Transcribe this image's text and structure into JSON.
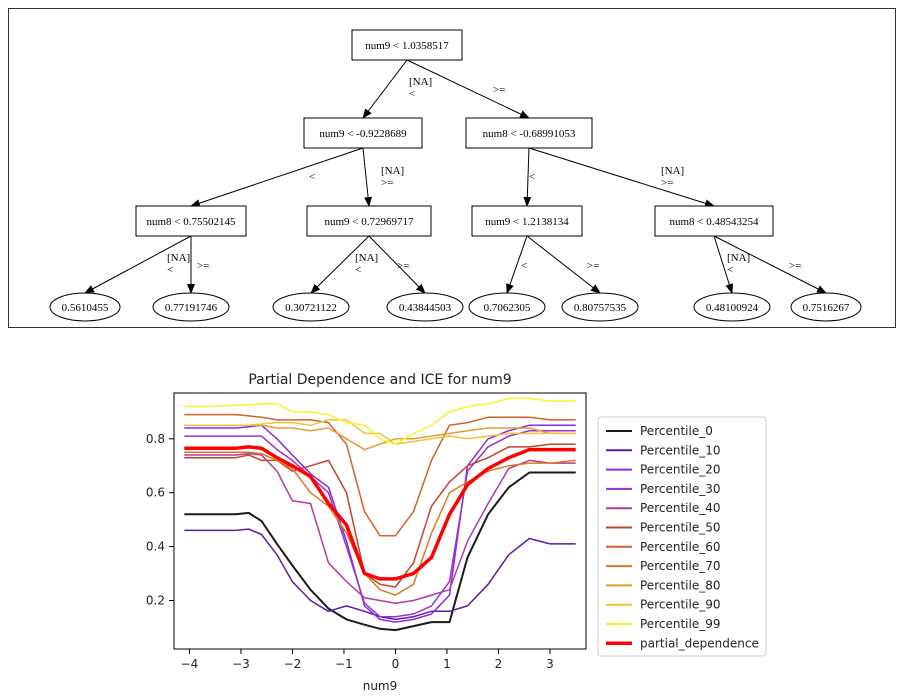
{
  "tree": {
    "nodes": [
      {
        "id": "n0",
        "label": "num9 < 1.0358517",
        "shape": "box"
      },
      {
        "id": "n1",
        "label": "num9 < -0.9228689",
        "shape": "box"
      },
      {
        "id": "n2",
        "label": "num8 < -0.68991053",
        "shape": "box"
      },
      {
        "id": "n3",
        "label": "num8 < 0.75502145",
        "shape": "box"
      },
      {
        "id": "n4",
        "label": "num9 < 0.72969717",
        "shape": "box"
      },
      {
        "id": "n5",
        "label": "num9 < 1.2138134",
        "shape": "box"
      },
      {
        "id": "n6",
        "label": "num8 < 0.48543254",
        "shape": "box"
      },
      {
        "id": "l0",
        "label": "0.5610455",
        "shape": "ellipse"
      },
      {
        "id": "l1",
        "label": "0.77191746",
        "shape": "ellipse"
      },
      {
        "id": "l2",
        "label": "0.30721122",
        "shape": "ellipse"
      },
      {
        "id": "l3",
        "label": "0.43844503",
        "shape": "ellipse"
      },
      {
        "id": "l4",
        "label": "0.7062305",
        "shape": "ellipse"
      },
      {
        "id": "l5",
        "label": "0.80757535",
        "shape": "ellipse"
      },
      {
        "id": "l6",
        "label": "0.48100924",
        "shape": "ellipse"
      },
      {
        "id": "l7",
        "label": "0.7516267",
        "shape": "ellipse"
      }
    ],
    "edges": [
      {
        "from": "n0",
        "to": "n1",
        "lines": [
          "[NA]",
          "<"
        ]
      },
      {
        "from": "n0",
        "to": "n2",
        "lines": [
          ">="
        ]
      },
      {
        "from": "n1",
        "to": "n3",
        "lines": [
          "<"
        ]
      },
      {
        "from": "n1",
        "to": "n4",
        "lines": [
          "[NA]",
          ">="
        ]
      },
      {
        "from": "n2",
        "to": "n5",
        "lines": [
          "<"
        ]
      },
      {
        "from": "n2",
        "to": "n6",
        "lines": [
          "[NA]",
          ">="
        ]
      },
      {
        "from": "n3",
        "to": "l0",
        "lines": [
          "[NA]",
          "<"
        ]
      },
      {
        "from": "n3",
        "to": "l1",
        "lines": [
          ">="
        ]
      },
      {
        "from": "n4",
        "to": "l2",
        "lines": [
          "[NA]",
          "<"
        ]
      },
      {
        "from": "n4",
        "to": "l3",
        "lines": [
          ">="
        ]
      },
      {
        "from": "n5",
        "to": "l4",
        "lines": [
          "<"
        ]
      },
      {
        "from": "n5",
        "to": "l5",
        "lines": [
          ">="
        ]
      },
      {
        "from": "n6",
        "to": "l6",
        "lines": [
          "[NA]",
          "<"
        ]
      },
      {
        "from": "n6",
        "to": "l7",
        "lines": [
          ">="
        ]
      }
    ]
  },
  "chart_data": {
    "type": "line",
    "title": "Partial Dependence and ICE for num9",
    "xlabel": "num9",
    "ylabel": "",
    "xlim": [
      -4.3,
      3.7
    ],
    "ylim": [
      0.02,
      0.97
    ],
    "xticks": [
      -4,
      -3,
      -2,
      -1,
      0,
      1,
      2,
      3
    ],
    "yticks": [
      0.2,
      0.4,
      0.6,
      0.8
    ],
    "grid": false,
    "legend_position": "right, outside",
    "x": [
      -4.1,
      -3.6,
      -3.1,
      -2.85,
      -2.6,
      -2.3,
      -2.0,
      -1.65,
      -1.3,
      -0.95,
      -0.6,
      -0.3,
      0.0,
      0.35,
      0.7,
      1.05,
      1.4,
      1.8,
      2.2,
      2.6,
      3.0,
      3.5
    ],
    "series": [
      {
        "name": "Percentile_0",
        "color": "#1a1a1a",
        "width": 2,
        "values": [
          0.52,
          0.52,
          0.52,
          0.525,
          0.495,
          0.41,
          0.33,
          0.24,
          0.17,
          0.13,
          0.11,
          0.095,
          0.09,
          0.105,
          0.12,
          0.12,
          0.36,
          0.52,
          0.62,
          0.675,
          0.675,
          0.675
        ]
      },
      {
        "name": "Percentile_10",
        "color": "#5b1ca8",
        "width": 1.5,
        "values": [
          0.46,
          0.46,
          0.46,
          0.465,
          0.445,
          0.37,
          0.27,
          0.2,
          0.16,
          0.18,
          0.16,
          0.14,
          0.13,
          0.14,
          0.16,
          0.16,
          0.18,
          0.26,
          0.37,
          0.43,
          0.41,
          0.41
        ]
      },
      {
        "name": "Percentile_20",
        "color": "#8a2be2",
        "width": 1.5,
        "values": [
          0.84,
          0.84,
          0.84,
          0.845,
          0.85,
          0.8,
          0.74,
          0.67,
          0.62,
          0.42,
          0.18,
          0.13,
          0.12,
          0.13,
          0.15,
          0.22,
          0.7,
          0.8,
          0.83,
          0.85,
          0.85,
          0.85
        ]
      },
      {
        "name": "Percentile_30",
        "color": "#9932cc",
        "width": 1.5,
        "values": [
          0.81,
          0.81,
          0.81,
          0.81,
          0.81,
          0.76,
          0.72,
          0.66,
          0.6,
          0.4,
          0.19,
          0.14,
          0.14,
          0.15,
          0.18,
          0.27,
          0.68,
          0.77,
          0.81,
          0.83,
          0.83,
          0.83
        ]
      },
      {
        "name": "Percentile_40",
        "color": "#b03c9c",
        "width": 1.5,
        "values": [
          0.74,
          0.74,
          0.74,
          0.745,
          0.74,
          0.68,
          0.57,
          0.56,
          0.34,
          0.27,
          0.21,
          0.2,
          0.19,
          0.2,
          0.22,
          0.24,
          0.42,
          0.56,
          0.69,
          0.72,
          0.71,
          0.71
        ]
      },
      {
        "name": "Percentile_50",
        "color": "#c2452e",
        "width": 1.5,
        "values": [
          0.73,
          0.73,
          0.73,
          0.74,
          0.72,
          0.72,
          0.68,
          0.7,
          0.72,
          0.6,
          0.3,
          0.26,
          0.25,
          0.34,
          0.55,
          0.64,
          0.7,
          0.73,
          0.77,
          0.77,
          0.78,
          0.78
        ]
      },
      {
        "name": "Percentile_60",
        "color": "#d2622a",
        "width": 1.5,
        "values": [
          0.89,
          0.89,
          0.89,
          0.885,
          0.88,
          0.87,
          0.87,
          0.87,
          0.86,
          0.78,
          0.53,
          0.44,
          0.44,
          0.53,
          0.72,
          0.85,
          0.86,
          0.88,
          0.88,
          0.88,
          0.87,
          0.87
        ]
      },
      {
        "name": "Percentile_70",
        "color": "#e07a22",
        "width": 1.5,
        "values": [
          0.75,
          0.75,
          0.75,
          0.75,
          0.745,
          0.72,
          0.69,
          0.6,
          0.55,
          0.45,
          0.3,
          0.24,
          0.22,
          0.26,
          0.45,
          0.6,
          0.64,
          0.68,
          0.7,
          0.71,
          0.71,
          0.72
        ]
      },
      {
        "name": "Percentile_80",
        "color": "#e0a030",
        "width": 1.5,
        "values": [
          0.85,
          0.85,
          0.85,
          0.85,
          0.85,
          0.84,
          0.84,
          0.83,
          0.84,
          0.8,
          0.76,
          0.78,
          0.8,
          0.8,
          0.81,
          0.82,
          0.83,
          0.84,
          0.84,
          0.84,
          0.82,
          0.82
        ]
      },
      {
        "name": "Percentile_90",
        "color": "#f0c43a",
        "width": 1.5,
        "values": [
          0.85,
          0.85,
          0.85,
          0.85,
          0.855,
          0.86,
          0.86,
          0.85,
          0.87,
          0.87,
          0.82,
          0.82,
          0.78,
          0.79,
          0.8,
          0.81,
          0.8,
          0.81,
          0.82,
          0.82,
          0.82,
          0.82
        ]
      },
      {
        "name": "Percentile_99",
        "color": "#f5f52a",
        "width": 1.5,
        "values": [
          0.92,
          0.92,
          0.925,
          0.925,
          0.93,
          0.93,
          0.9,
          0.9,
          0.89,
          0.86,
          0.85,
          0.8,
          0.78,
          0.82,
          0.85,
          0.9,
          0.92,
          0.93,
          0.95,
          0.95,
          0.94,
          0.94
        ]
      },
      {
        "name": "partial_dependence",
        "color": "#ff0000",
        "width": 3.5,
        "values": [
          0.765,
          0.765,
          0.765,
          0.77,
          0.765,
          0.73,
          0.7,
          0.66,
          0.56,
          0.48,
          0.3,
          0.28,
          0.28,
          0.3,
          0.36,
          0.52,
          0.63,
          0.69,
          0.73,
          0.76,
          0.76,
          0.76
        ]
      }
    ]
  }
}
